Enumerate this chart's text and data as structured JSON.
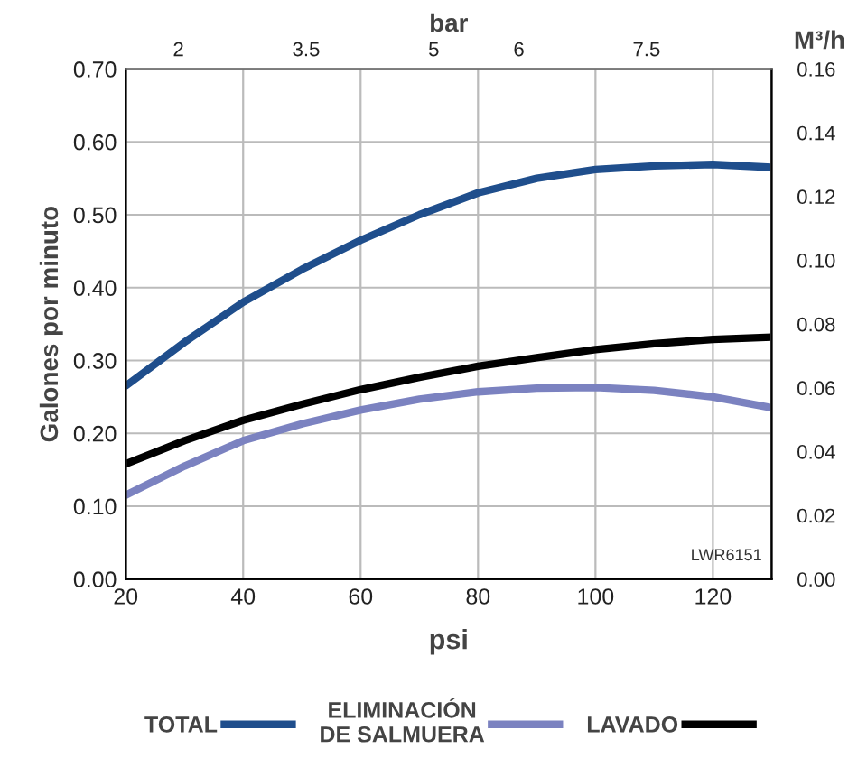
{
  "chart_data": {
    "type": "line",
    "xlabel": "psi",
    "ylabel": "Galones por minuto",
    "x2label": "bar",
    "y2label": "M³/h",
    "x": [
      20,
      30,
      40,
      50,
      60,
      70,
      80,
      90,
      100,
      110,
      120,
      130
    ],
    "series": [
      {
        "name": "TOTAL",
        "color": "#1f4e8c",
        "values": [
          0.265,
          0.325,
          0.38,
          0.425,
          0.465,
          0.5,
          0.53,
          0.55,
          0.562,
          0.567,
          0.569,
          0.565
        ]
      },
      {
        "name": "ELIMINACIÓN\nDE SALMUERA",
        "color": "#7b82c0",
        "values": [
          0.115,
          0.155,
          0.19,
          0.213,
          0.232,
          0.247,
          0.257,
          0.262,
          0.263,
          0.259,
          0.25,
          0.235
        ]
      },
      {
        "name": "LAVADO",
        "color": "#000000",
        "values": [
          0.158,
          0.19,
          0.218,
          0.24,
          0.26,
          0.277,
          0.292,
          0.304,
          0.315,
          0.323,
          0.329,
          0.332
        ]
      }
    ],
    "xlim": [
      20,
      130
    ],
    "xticks": [
      20,
      40,
      60,
      80,
      100,
      120
    ],
    "ylim": [
      0,
      0.7
    ],
    "yticks": [
      {
        "value": 0,
        "label": "0.00"
      },
      {
        "value": 0.1,
        "label": "0.10"
      },
      {
        "value": 0.2,
        "label": "0.20"
      },
      {
        "value": 0.3,
        "label": "0.30"
      },
      {
        "value": 0.4,
        "label": "0.40"
      },
      {
        "value": 0.5,
        "label": "0.50"
      },
      {
        "value": 0.6,
        "label": "0.60"
      },
      {
        "value": 0.7,
        "label": "0.70"
      }
    ],
    "x2lim": [
      1.38,
      8.97
    ],
    "x2ticks": [
      2,
      3.5,
      5,
      6,
      7.5
    ],
    "y2lim": [
      0,
      0.16
    ],
    "y2ticks": [
      {
        "value": 0,
        "label": "0.00"
      },
      {
        "value": 0.02,
        "label": "0.02"
      },
      {
        "value": 0.04,
        "label": "0.04"
      },
      {
        "value": 0.06,
        "label": "0.06"
      },
      {
        "value": 0.08,
        "label": "0.08"
      },
      {
        "value": 0.1,
        "label": "0.10"
      },
      {
        "value": 0.12,
        "label": "0.12"
      },
      {
        "value": 0.14,
        "label": "0.14"
      },
      {
        "value": 0.16,
        "label": "0.16"
      }
    ],
    "annotations": [
      "LWR6151"
    ],
    "grid": true,
    "legend": "bottom",
    "line_style": "solid",
    "marker": "none"
  }
}
